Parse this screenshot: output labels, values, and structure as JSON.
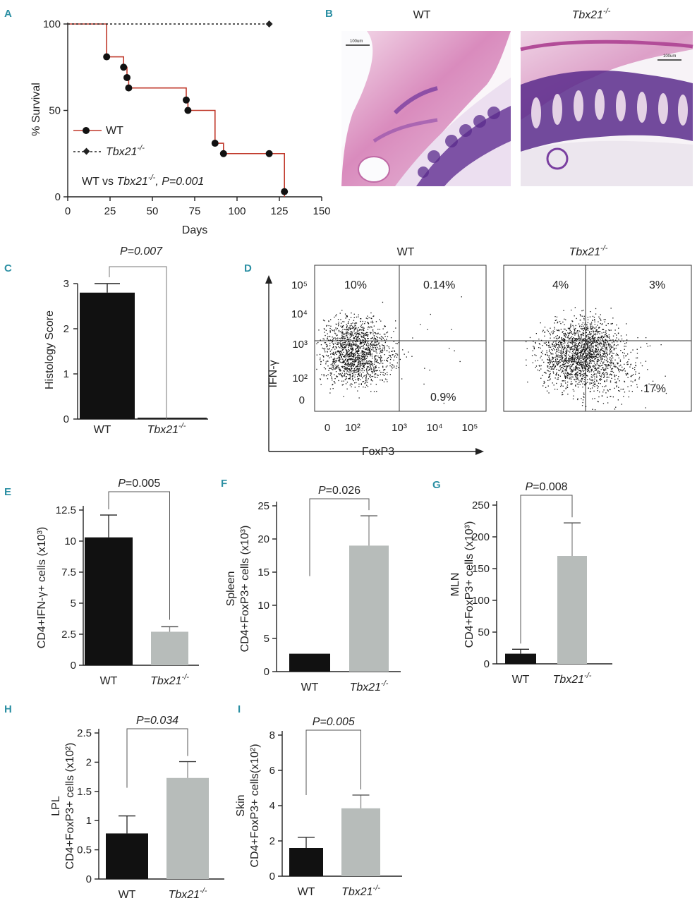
{
  "colors": {
    "wt": "#111111",
    "ko": "#b7bcba",
    "survival_wt": "#c0392b",
    "panel_label": "#2b8fa3",
    "histo_pink": "#d86aa8",
    "histo_purple": "#5a2b8c"
  },
  "panel_labels": [
    "A",
    "B",
    "C",
    "D",
    "E",
    "F",
    "G",
    "H",
    "I"
  ],
  "panel_A": {
    "ylabel": "% Survival",
    "xlabel": "Days",
    "xticks": [
      "0",
      "25",
      "50",
      "75",
      "100",
      "125",
      "150"
    ],
    "yticks": [
      "0",
      "50",
      "100"
    ],
    "legend": [
      {
        "name": "WT"
      },
      {
        "name": "Tbx21",
        "sup": "-/-"
      }
    ],
    "stat_prefix": "WT vs ",
    "stat_gene": "Tbx21",
    "stat_sup": "-/-",
    "stat_p": ", P=0.001"
  },
  "panel_B": {
    "left_title": "WT",
    "right_title": "Tbx21",
    "right_sup": "-/-",
    "scale_left": "100um",
    "scale_right": "100um"
  },
  "panel_C": {
    "ylabel": "Histology Score",
    "yticks": [
      "0",
      "1",
      "2",
      "3"
    ],
    "categories": [
      "WT",
      "Tbx21-/-"
    ],
    "cat_gene": "Tbx21",
    "cat_sup": "-/-",
    "pvalue": "P=0.007"
  },
  "panel_D": {
    "left_title": "WT",
    "right_title": "Tbx21",
    "right_sup": "-/-",
    "ylabel": "IFN-γ",
    "xlabel": "FoxP3",
    "yticks": [
      "10⁵",
      "10⁴",
      "10³",
      "10²",
      "0"
    ],
    "xticks": [
      "0",
      "10²",
      "10³",
      "10⁴",
      "10⁵"
    ],
    "wt_quadrants": {
      "ul": "10%",
      "ur": "0.14%",
      "lr": "0.9%"
    },
    "ko_quadrants": {
      "ul": "4%",
      "ur": "3%",
      "lr": "17%"
    }
  },
  "panel_E": {
    "ylabel": "CD4+IFN-γ+ cells (x10³)",
    "yticks": [
      "0",
      "2.5",
      "5",
      "7.5",
      "10",
      "12.5"
    ],
    "pvalue": "P=0.005"
  },
  "panel_F": {
    "ylabel_top": "Spleen",
    "ylabel": "CD4+FoxP3+ cells (x10³)",
    "yticks": [
      "0",
      "5",
      "10",
      "15",
      "20",
      "25"
    ],
    "pvalue": "P=0.026"
  },
  "panel_G": {
    "ylabel_top": "MLN",
    "ylabel": "CD4+FoxP3+ cells (x10³)",
    "yticks": [
      "0",
      "50",
      "100",
      "150",
      "200",
      "250"
    ],
    "pvalue": "P=0.008"
  },
  "panel_H": {
    "ylabel_top": "LPL",
    "ylabel": "CD4+FoxP3+ cells (x10²)",
    "yticks": [
      "0",
      "0.5",
      "1",
      "1.5",
      "2",
      "2.5"
    ],
    "pvalue": "P=0.034"
  },
  "panel_I": {
    "ylabel_top": "Skin",
    "ylabel": "CD4+FoxP3+ cells(x10²)",
    "yticks": [
      "0",
      "2",
      "4",
      "6",
      "8"
    ],
    "pvalue": "P=0.005"
  },
  "chart_data": [
    {
      "id": "A",
      "type": "line",
      "title": "",
      "xlabel": "Days",
      "ylabel": "% Survival",
      "xlim": [
        0,
        150
      ],
      "ylim": [
        0,
        100
      ],
      "series": [
        {
          "name": "WT",
          "steps": [
            [
              0,
              100
            ],
            [
              23,
              100
            ],
            [
              23,
              81
            ],
            [
              33,
              81
            ],
            [
              33,
              75
            ],
            [
              35,
              75
            ],
            [
              35,
              69
            ],
            [
              36,
              69
            ],
            [
              36,
              63
            ],
            [
              70,
              63
            ],
            [
              70,
              56
            ],
            [
              71,
              56
            ],
            [
              71,
              50
            ],
            [
              87,
              50
            ],
            [
              87,
              31
            ],
            [
              92,
              31
            ],
            [
              92,
              25
            ],
            [
              119,
              25
            ],
            [
              128,
              25
            ],
            [
              128,
              0
            ]
          ],
          "markers": [
            [
              23,
              81
            ],
            [
              33,
              75
            ],
            [
              35,
              69
            ],
            [
              36,
              63
            ],
            [
              70,
              56
            ],
            [
              71,
              50
            ],
            [
              87,
              31
            ],
            [
              92,
              25
            ],
            [
              119,
              25
            ],
            [
              128,
              3
            ]
          ]
        },
        {
          "name": "Tbx21-/-",
          "steps": [
            [
              0,
              100
            ],
            [
              119,
              100
            ]
          ],
          "markers": [
            [
              119,
              100
            ]
          ]
        }
      ]
    },
    {
      "id": "C",
      "type": "bar",
      "title": "",
      "categories": [
        "WT",
        "Tbx21-/-"
      ],
      "values": [
        2.8,
        0.0
      ],
      "errors": [
        0.2,
        0
      ],
      "ylabel": "Histology Score",
      "ylim": [
        0,
        3
      ],
      "pvalue": "P=0.007"
    },
    {
      "id": "D",
      "type": "scatter",
      "title": "",
      "xlabel": "FoxP3",
      "ylabel": "IFN-γ",
      "panels": [
        {
          "name": "WT",
          "quadrants": {
            "ul": "10%",
            "ur": "0.14%",
            "lr": "0.9%"
          }
        },
        {
          "name": "Tbx21-/-",
          "quadrants": {
            "ul": "4%",
            "ur": "3%",
            "lr": "17%"
          }
        }
      ]
    },
    {
      "id": "E",
      "type": "bar",
      "title": "",
      "categories": [
        "WT",
        "Tbx21-/-"
      ],
      "values": [
        10.3,
        2.7
      ],
      "errors": [
        1.8,
        0.4
      ],
      "ylabel": "CD4+IFN-γ+ cells (x10³)",
      "ylim": [
        0,
        12.5
      ],
      "pvalue": "P=0.005"
    },
    {
      "id": "F",
      "type": "bar",
      "title": "",
      "categories": [
        "WT",
        "Tbx21-/-"
      ],
      "values": [
        2.7,
        19.0
      ],
      "errors": [
        0,
        4.5
      ],
      "ylabel": "Spleen CD4+FoxP3+ cells (x10³)",
      "ylim": [
        0,
        25
      ],
      "pvalue": "P=0.026"
    },
    {
      "id": "G",
      "type": "bar",
      "title": "",
      "categories": [
        "WT",
        "Tbx21-/-"
      ],
      "values": [
        16,
        170
      ],
      "errors": [
        7,
        52
      ],
      "ylabel": "MLN CD4+FoxP3+ cells (x10³)",
      "ylim": [
        0,
        250
      ],
      "pvalue": "P=0.008"
    },
    {
      "id": "H",
      "type": "bar",
      "title": "",
      "categories": [
        "WT",
        "Tbx21-/-"
      ],
      "values": [
        0.78,
        1.73
      ],
      "errors": [
        0.3,
        0.28
      ],
      "ylabel": "LPL CD4+FoxP3+ cells (x10²)",
      "ylim": [
        0,
        2.5
      ],
      "pvalue": "P=0.034"
    },
    {
      "id": "I",
      "type": "bar",
      "title": "",
      "categories": [
        "WT",
        "Tbx21-/-"
      ],
      "values": [
        1.6,
        3.85
      ],
      "errors": [
        0.6,
        0.75
      ],
      "ylabel": "Skin CD4+FoxP3+ cells (x10²)",
      "ylim": [
        0,
        8
      ],
      "pvalue": "P=0.005"
    }
  ]
}
